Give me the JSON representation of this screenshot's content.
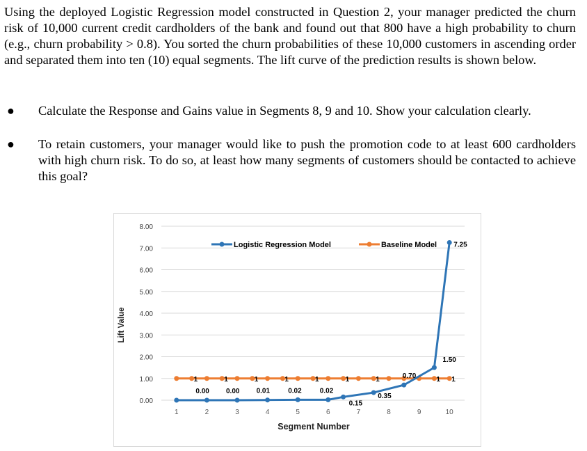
{
  "question": {
    "intro": "Using the deployed Logistic Regression model constructed in Question 2, your manager predicted the churn risk of 10,000 current credit cardholders of the bank and found out that 800 have a high probability to churn (e.g., churn probability > 0.8). You sorted the churn probabilities of these 10,000 customers in ascending order and separated them into ten (10) equal segments. The lift curve of the prediction results is shown below.",
    "bullets": [
      "Calculate the Response and Gains value in Segments 8, 9 and 10. Show your calculation clearly.",
      "To retain customers, your manager would like to push the promotion code to at least 600 cardholders with high churn risk. To do so, at least how many segments of customers should be contacted to achieve this goal?"
    ],
    "bullet_symbol": "●"
  },
  "chart_data": {
    "type": "line",
    "title": "",
    "xlabel": "Segment Number",
    "ylabel": "Lift Value",
    "x": [
      1,
      2,
      3,
      4,
      5,
      6,
      7,
      8,
      9,
      10
    ],
    "ylim": [
      0,
      8
    ],
    "yticks": [
      "0.00",
      "1.00",
      "2.00",
      "3.00",
      "4.00",
      "5.00",
      "6.00",
      "7.00",
      "8.00"
    ],
    "grid": true,
    "legend_position": "top",
    "series": [
      {
        "name": "Logistic Regression Model",
        "color": "#2e75b6",
        "values": [
          0.0,
          0.0,
          0.0,
          0.01,
          0.02,
          0.02,
          0.15,
          0.35,
          0.7,
          1.5,
          7.25
        ],
        "x": [
          1,
          2,
          3,
          4,
          5,
          6,
          6.5,
          7.5,
          8.5,
          9.5,
          10
        ],
        "labels": [
          "",
          "0.00",
          "0.00",
          "0.01",
          "0.02",
          "0.02",
          "0.15",
          "0.35",
          "0.70",
          "1.50",
          "7.25"
        ]
      },
      {
        "name": "Baseline Model",
        "color": "#ed7d31",
        "values": [
          1,
          1,
          1,
          1,
          1,
          1,
          1,
          1,
          1,
          1,
          1,
          1,
          1,
          1,
          1,
          1,
          1,
          1,
          1
        ],
        "x": [
          1,
          1.5,
          2,
          2.5,
          3,
          3.5,
          4,
          4.5,
          5,
          5.5,
          6,
          6.5,
          7,
          7.5,
          8,
          8.5,
          9,
          9.5,
          10
        ],
        "labels": [
          "",
          "1",
          "",
          "1",
          "",
          "1",
          "",
          "1",
          "",
          "1",
          "",
          "1",
          "",
          "1",
          "",
          "",
          "",
          "1",
          "1"
        ]
      }
    ]
  }
}
